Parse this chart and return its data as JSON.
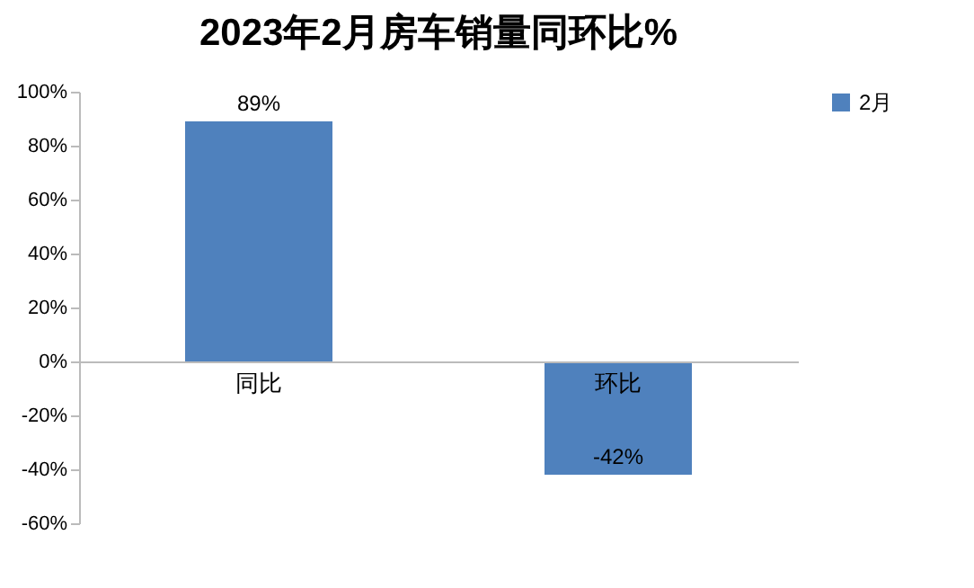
{
  "chart_data": {
    "type": "bar",
    "title": "2023年2月房车销量同环比%",
    "categories": [
      "同比",
      "环比"
    ],
    "series": [
      {
        "name": "2月",
        "color": "#4f81bd",
        "values": [
          89,
          -42
        ]
      }
    ],
    "value_labels": [
      "89%",
      "-42%"
    ],
    "ylim": [
      -60,
      100
    ],
    "yticks": [
      {
        "value": -60,
        "label": "-60%"
      },
      {
        "value": -40,
        "label": "-40%"
      },
      {
        "value": -20,
        "label": "-20%"
      },
      {
        "value": 0,
        "label": "0%"
      },
      {
        "value": 20,
        "label": "20%"
      },
      {
        "value": 40,
        "label": "40%"
      },
      {
        "value": 60,
        "label": "60%"
      },
      {
        "value": 80,
        "label": "80%"
      },
      {
        "value": 100,
        "label": "100%"
      }
    ],
    "grid": false,
    "legend": "right"
  }
}
